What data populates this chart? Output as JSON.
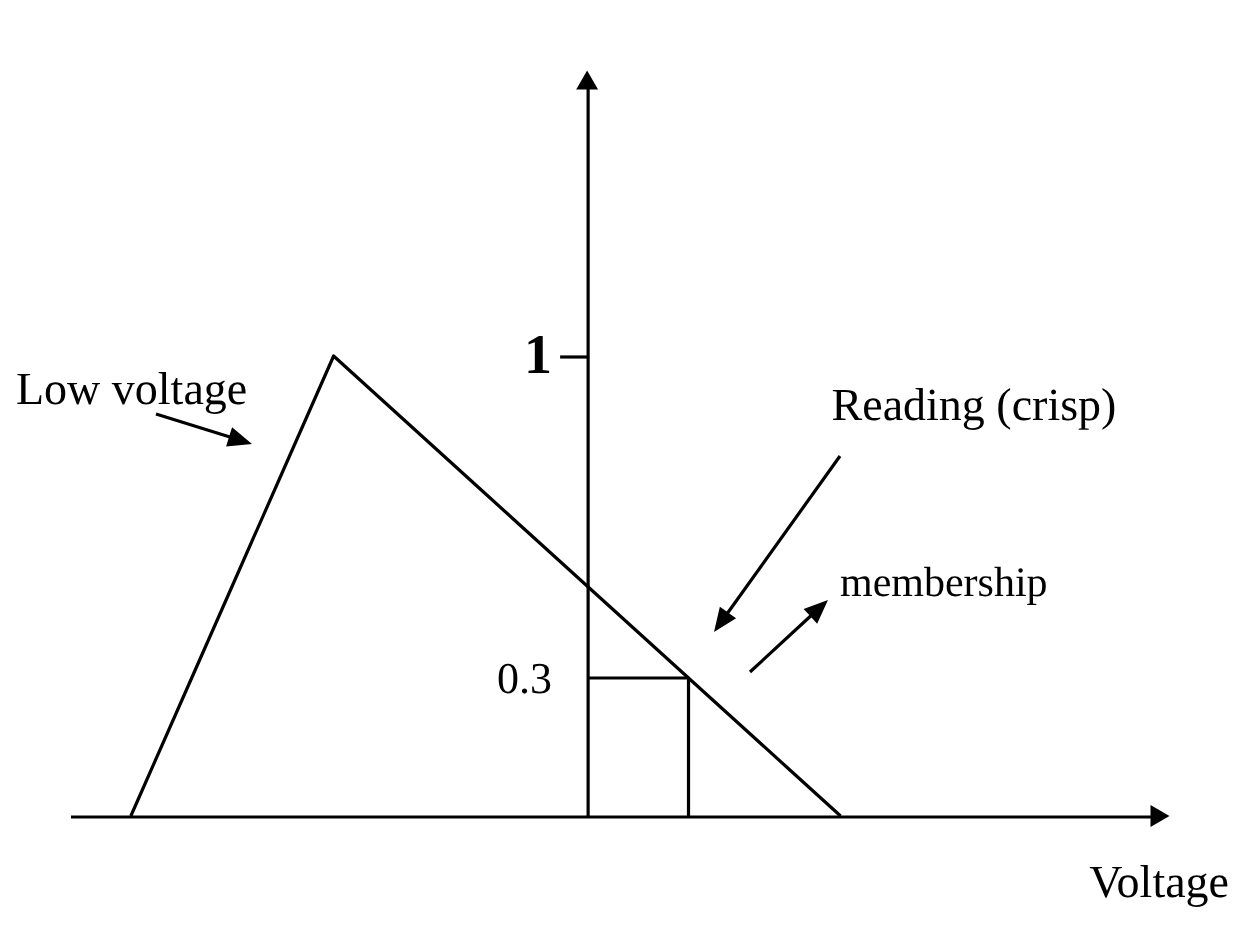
{
  "chart_data": {
    "type": "line",
    "categories": [
      null,
      null,
      null,
      null,
      null,
      null,
      null,
      null,
      null,
      null,
      null,
      null,
      null,
      null,
      null
    ],
    "series": [
      {
        "name": "Low voltage",
        "color": "#000000",
        "values": [
          0,
          0.25,
          0.5,
          0.75,
          1,
          0.9,
          0.8,
          0.7,
          0.6,
          0.5,
          0.4,
          0.3,
          0.2,
          0.1,
          0
        ]
      },
      {
        "type": "step",
        "color": "#000000",
        "values": [
          null,
          null,
          null,
          null,
          null,
          null,
          null,
          null,
          null,
          0.3,
          0.3,
          0,
          null,
          null,
          null
        ]
      }
    ],
    "ylim": [
      0,
      1.6
    ],
    "yticks": [
      0.3,
      1
    ],
    "xlabel": "Voltage",
    "annotations": [
      "Reading (crisp)",
      "membership"
    ],
    "tick_labels": "y"
  }
}
